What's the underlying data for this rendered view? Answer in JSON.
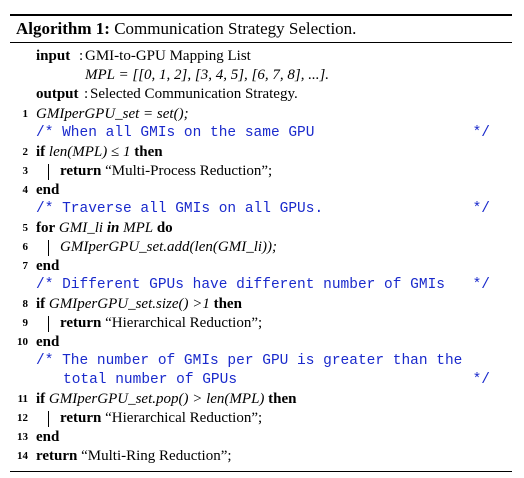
{
  "title": {
    "label": "Algorithm 1:",
    "text": "Communication Strategy Selection."
  },
  "io": {
    "input_kw": "input",
    "input_colon": ":",
    "input_text": "GMI-to-GPU Mapping List",
    "mpl_text": "MPL = [[0, 1, 2], [3, 4, 5], [6, 7, 8], ...].",
    "output_kw": "output",
    "output_colon": ":",
    "output_text": "Selected Communication Strategy."
  },
  "lines": {
    "l1": {
      "num": "1",
      "code": "GMIperGPU_set = set();"
    },
    "c1": {
      "text": "/* When all GMIs on the same GPU",
      "end": "*/"
    },
    "l2": {
      "num": "2",
      "kw_if": "if",
      "cond": "len(MPL) ≤ 1",
      "kw_then": "then"
    },
    "l3": {
      "num": "3",
      "kw": "return",
      "str": "“Multi-Process Reduction”;"
    },
    "l4": {
      "num": "4",
      "kw": "end"
    },
    "c2": {
      "text": "/* Traverse all GMIs on all GPUs.",
      "end": "*/"
    },
    "l5": {
      "num": "5",
      "kw_for": "for",
      "var": "GMI_li",
      "kw_in": "in",
      "coll": "MPL",
      "kw_do": "do"
    },
    "l6": {
      "num": "6",
      "code": "GMIperGPU_set.add(len(GMI_li));"
    },
    "l7": {
      "num": "7",
      "kw": "end"
    },
    "c3": {
      "text": "/* Different GPUs have different number of GMIs",
      "end": "*/"
    },
    "l8": {
      "num": "8",
      "kw_if": "if",
      "cond": "GMIperGPU_set.size() >1",
      "kw_then": "then"
    },
    "l9": {
      "num": "9",
      "kw": "return",
      "str": "“Hierarchical Reduction”;"
    },
    "l10": {
      "num": "10",
      "kw": "end"
    },
    "c4": {
      "text": "/* The number of GMIs per GPU is greater than the",
      "text2": "total number of GPUs",
      "end": "*/"
    },
    "l11": {
      "num": "11",
      "kw_if": "if",
      "cond": "GMIperGPU_set.pop() > len(MPL)",
      "kw_then": "then"
    },
    "l12": {
      "num": "12",
      "kw": "return",
      "str": "“Hierarchical Reduction”;"
    },
    "l13": {
      "num": "13",
      "kw": "end"
    },
    "l14": {
      "num": "14",
      "kw": "return",
      "str": "“Multi-Ring Reduction”;"
    }
  }
}
